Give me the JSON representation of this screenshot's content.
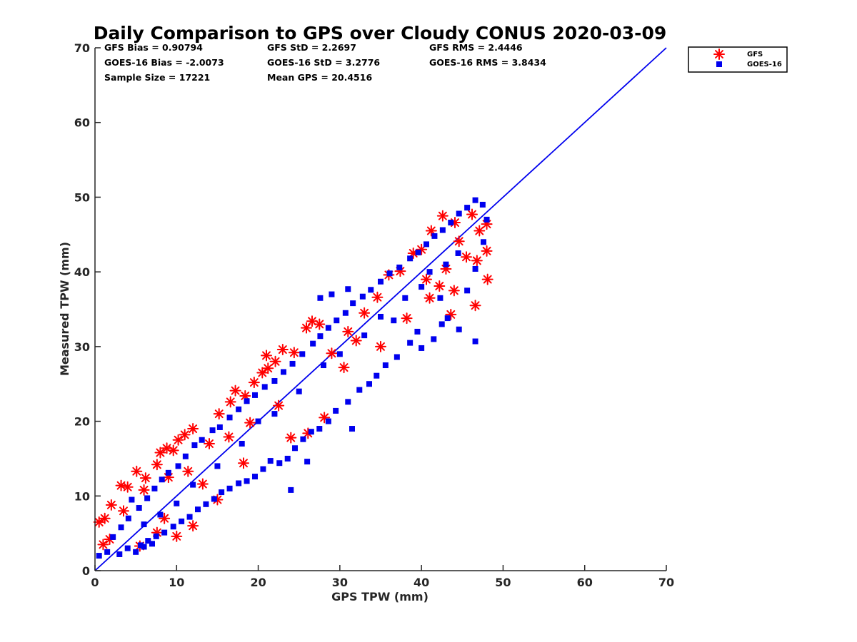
{
  "chart_data": {
    "type": "scatter",
    "title": "Daily Comparison to GPS over Cloudy CONUS 2020-03-09",
    "xlabel": "GPS TPW (mm)",
    "ylabel": "Measured TPW (mm)",
    "xlim": [
      0,
      70
    ],
    "ylim": [
      0,
      70
    ],
    "xticks": [
      "0",
      "10",
      "20",
      "30",
      "40",
      "50",
      "60",
      "70"
    ],
    "yticks": [
      "0",
      "10",
      "20",
      "30",
      "40",
      "50",
      "60",
      "70"
    ],
    "grid": false,
    "legend_position": "outside-top-right",
    "stats": [
      "GFS Bias = 0.90794",
      "GFS StD = 2.2697",
      "GFS RMS = 2.4446",
      "GOES-16 Bias = -2.0073",
      "GOES-16 StD = 3.2776",
      "GOES-16 RMS = 3.8434",
      "Sample Size = 17221",
      "Mean GPS = 20.4516"
    ],
    "reference_line": {
      "x": [
        0,
        70
      ],
      "y": [
        0,
        70
      ],
      "color": "#0000ee"
    },
    "series": [
      {
        "name": "GFS",
        "marker": "asterisk",
        "color": "#ff0000",
        "points": [
          [
            0.5,
            6.5
          ],
          [
            1.2,
            7.0
          ],
          [
            2.0,
            8.8
          ],
          [
            1.0,
            3.5
          ],
          [
            1.8,
            4.2
          ],
          [
            3.2,
            11.4
          ],
          [
            4.0,
            11.2
          ],
          [
            5.1,
            13.3
          ],
          [
            6.2,
            12.4
          ],
          [
            7.6,
            14.2
          ],
          [
            8.0,
            15.8
          ],
          [
            8.8,
            16.4
          ],
          [
            9.6,
            16.1
          ],
          [
            10.2,
            17.5
          ],
          [
            11.0,
            18.2
          ],
          [
            12.0,
            19.0
          ],
          [
            3.5,
            8.0
          ],
          [
            6.0,
            10.8
          ],
          [
            9.0,
            12.5
          ],
          [
            11.4,
            13.3
          ],
          [
            14.0,
            17.0
          ],
          [
            15.2,
            21.0
          ],
          [
            16.6,
            22.6
          ],
          [
            18.4,
            23.4
          ],
          [
            17.2,
            24.1
          ],
          [
            19.5,
            25.2
          ],
          [
            20.5,
            26.5
          ],
          [
            21.2,
            27.1
          ],
          [
            22.1,
            28.0
          ],
          [
            21.0,
            28.8
          ],
          [
            23.0,
            29.6
          ],
          [
            24.4,
            29.2
          ],
          [
            25.9,
            32.5
          ],
          [
            26.6,
            33.4
          ],
          [
            27.5,
            33.0
          ],
          [
            26.1,
            18.4
          ],
          [
            28.1,
            20.5
          ],
          [
            29.0,
            29.1
          ],
          [
            31.0,
            32.0
          ],
          [
            33.0,
            34.5
          ],
          [
            34.6,
            36.6
          ],
          [
            36.0,
            39.6
          ],
          [
            37.4,
            40.1
          ],
          [
            39.0,
            42.5
          ],
          [
            40.0,
            43.0
          ],
          [
            41.2,
            45.5
          ],
          [
            42.6,
            47.5
          ],
          [
            44.1,
            46.6
          ],
          [
            46.2,
            47.7
          ],
          [
            47.1,
            45.5
          ],
          [
            48.0,
            46.4
          ],
          [
            48.0,
            42.8
          ],
          [
            48.1,
            39.0
          ],
          [
            46.6,
            35.5
          ],
          [
            43.0,
            40.4
          ],
          [
            42.2,
            38.1
          ],
          [
            43.6,
            34.3
          ],
          [
            44.6,
            44.1
          ],
          [
            45.5,
            42.0
          ],
          [
            46.8,
            41.5
          ],
          [
            41.0,
            36.5
          ],
          [
            12.0,
            6.0
          ],
          [
            10.0,
            4.6
          ],
          [
            7.6,
            5.1
          ],
          [
            15.0,
            9.5
          ],
          [
            18.2,
            14.4
          ],
          [
            24.0,
            17.8
          ],
          [
            5.5,
            3.3
          ],
          [
            8.5,
            7.0
          ],
          [
            13.2,
            11.6
          ],
          [
            16.4,
            17.9
          ],
          [
            19.0,
            19.8
          ],
          [
            22.5,
            22.1
          ],
          [
            30.5,
            27.2
          ],
          [
            32.0,
            30.8
          ],
          [
            35.0,
            30.0
          ],
          [
            38.2,
            33.8
          ],
          [
            40.6,
            39.0
          ],
          [
            44.0,
            37.5
          ]
        ]
      },
      {
        "name": "GOES-16",
        "marker": "square",
        "color": "#0000ee",
        "points": [
          [
            0.5,
            2.0
          ],
          [
            1.5,
            2.5
          ],
          [
            3.0,
            2.2
          ],
          [
            4.0,
            3.0
          ],
          [
            5.0,
            2.5
          ],
          [
            6.0,
            3.2
          ],
          [
            7.0,
            3.6
          ],
          [
            2.2,
            4.5
          ],
          [
            3.2,
            5.8
          ],
          [
            4.1,
            7.0
          ],
          [
            4.5,
            9.5
          ],
          [
            5.4,
            8.4
          ],
          [
            6.4,
            9.7
          ],
          [
            7.3,
            11.0
          ],
          [
            8.2,
            12.2
          ],
          [
            9.0,
            13.1
          ],
          [
            10.2,
            14.0
          ],
          [
            11.1,
            15.3
          ],
          [
            12.2,
            16.8
          ],
          [
            13.1,
            17.5
          ],
          [
            14.4,
            18.8
          ],
          [
            15.3,
            19.2
          ],
          [
            16.5,
            20.5
          ],
          [
            17.6,
            21.6
          ],
          [
            18.6,
            22.7
          ],
          [
            19.6,
            23.5
          ],
          [
            20.8,
            24.6
          ],
          [
            22.0,
            25.4
          ],
          [
            23.1,
            26.6
          ],
          [
            24.2,
            27.7
          ],
          [
            25.4,
            29.0
          ],
          [
            26.7,
            30.4
          ],
          [
            27.6,
            31.4
          ],
          [
            28.6,
            32.5
          ],
          [
            29.6,
            33.5
          ],
          [
            30.7,
            34.5
          ],
          [
            31.6,
            35.8
          ],
          [
            32.8,
            36.7
          ],
          [
            33.8,
            37.6
          ],
          [
            35.0,
            38.7
          ],
          [
            36.1,
            39.8
          ],
          [
            37.3,
            40.6
          ],
          [
            38.6,
            41.8
          ],
          [
            39.6,
            42.6
          ],
          [
            40.6,
            43.7
          ],
          [
            41.6,
            44.8
          ],
          [
            42.6,
            45.6
          ],
          [
            43.6,
            46.6
          ],
          [
            44.6,
            47.8
          ],
          [
            45.6,
            48.6
          ],
          [
            46.6,
            49.6
          ],
          [
            47.5,
            49.0
          ],
          [
            48.0,
            47.0
          ],
          [
            47.6,
            44.0
          ],
          [
            46.6,
            40.4
          ],
          [
            45.6,
            37.5
          ],
          [
            46.6,
            30.7
          ],
          [
            44.6,
            32.3
          ],
          [
            43.2,
            33.8
          ],
          [
            42.5,
            33.0
          ],
          [
            41.5,
            31.0
          ],
          [
            40.0,
            29.8
          ],
          [
            38.6,
            30.5
          ],
          [
            37.0,
            28.6
          ],
          [
            35.6,
            27.5
          ],
          [
            34.5,
            26.1
          ],
          [
            33.6,
            25.0
          ],
          [
            32.4,
            24.2
          ],
          [
            31.0,
            22.6
          ],
          [
            29.5,
            21.4
          ],
          [
            28.6,
            20.0
          ],
          [
            27.5,
            19.0
          ],
          [
            26.5,
            18.6
          ],
          [
            25.5,
            17.6
          ],
          [
            24.5,
            16.4
          ],
          [
            23.6,
            15.0
          ],
          [
            22.6,
            14.4
          ],
          [
            21.5,
            14.7
          ],
          [
            20.6,
            13.6
          ],
          [
            19.6,
            12.6
          ],
          [
            18.6,
            12.0
          ],
          [
            17.6,
            11.7
          ],
          [
            16.5,
            11.0
          ],
          [
            15.5,
            10.5
          ],
          [
            14.6,
            9.6
          ],
          [
            13.6,
            8.9
          ],
          [
            12.6,
            8.2
          ],
          [
            11.6,
            7.2
          ],
          [
            10.6,
            6.6
          ],
          [
            9.6,
            5.9
          ],
          [
            8.5,
            5.1
          ],
          [
            7.5,
            4.6
          ],
          [
            6.5,
            4.0
          ],
          [
            5.6,
            3.4
          ],
          [
            24.0,
            10.8
          ],
          [
            31.5,
            19.0
          ],
          [
            26.0,
            14.6
          ],
          [
            20.0,
            20.0
          ],
          [
            15.0,
            14.0
          ],
          [
            10.0,
            9.0
          ],
          [
            8.0,
            7.5
          ],
          [
            25.0,
            24.0
          ],
          [
            30.0,
            29.0
          ],
          [
            35.0,
            34.0
          ],
          [
            40.0,
            38.0
          ],
          [
            38.0,
            36.5
          ],
          [
            44.5,
            42.5
          ],
          [
            28.0,
            27.5
          ],
          [
            33.0,
            31.5
          ],
          [
            18.0,
            17.0
          ],
          [
            12.0,
            11.5
          ],
          [
            6.0,
            6.2
          ],
          [
            22.0,
            21.0
          ],
          [
            36.6,
            33.5
          ],
          [
            41.0,
            40.0
          ],
          [
            43.0,
            41.0
          ],
          [
            29.0,
            37.0
          ],
          [
            27.6,
            36.5
          ],
          [
            31.0,
            37.7
          ],
          [
            39.5,
            32.0
          ],
          [
            42.3,
            36.5
          ]
        ]
      }
    ]
  }
}
